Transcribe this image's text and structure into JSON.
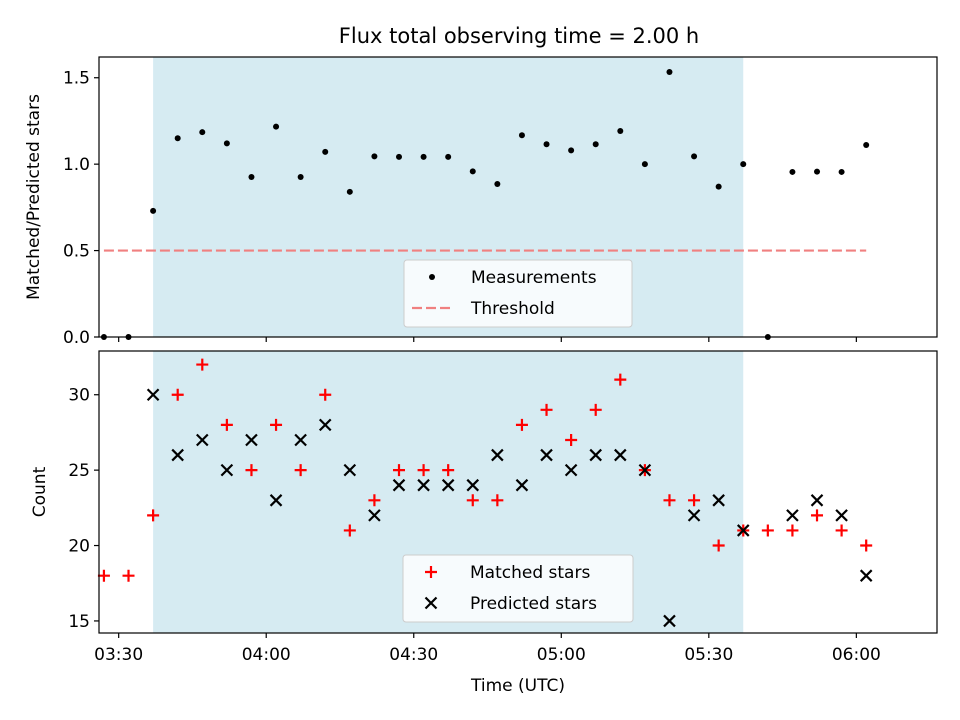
{
  "figure": {
    "title": "Flux total observing time = 2.00 h"
  },
  "chart_data": [
    {
      "type": "scatter",
      "ylabel": "Matched/Predicted stars",
      "ylim": [
        0.0,
        1.62
      ],
      "xlim_minutes": [
        3.4333,
        6.2733
      ],
      "yticks": [
        0.0,
        0.5,
        1.0,
        1.5
      ],
      "ytick_labels": [
        "0.0",
        "0.5",
        "1.0",
        "1.5"
      ],
      "shaded_span": [
        "03:37",
        "05:37"
      ],
      "shade_color": "#add8e6",
      "series": [
        {
          "name": "Measurements",
          "marker": "dot",
          "color": "#000000",
          "x": [
            "03:27",
            "03:32",
            "03:37",
            "03:42",
            "03:47",
            "03:52",
            "03:57",
            "04:02",
            "04:07",
            "04:12",
            "04:17",
            "04:22",
            "04:27",
            "04:32",
            "04:37",
            "04:42",
            "04:47",
            "04:52",
            "04:57",
            "05:02",
            "05:07",
            "05:12",
            "05:17",
            "05:22",
            "05:27",
            "05:32",
            "05:37",
            "05:42",
            "05:47",
            "05:52",
            "05:57",
            "06:02"
          ],
          "y": [
            0.0,
            0.0,
            0.73,
            1.15,
            1.185,
            1.12,
            0.926,
            1.217,
            0.926,
            1.071,
            0.84,
            1.045,
            1.042,
            1.042,
            1.042,
            0.958,
            0.885,
            1.167,
            1.115,
            1.08,
            1.115,
            1.192,
            1.0,
            1.533,
            1.045,
            0.87,
            1.0,
            0.0,
            0.955,
            0.957,
            0.955,
            1.111
          ]
        }
      ],
      "lines": [
        {
          "name": "Threshold",
          "style": "dashed",
          "color": "#f08080",
          "value": 0.5,
          "x_from": "03:27",
          "x_to": "06:02"
        }
      ],
      "legend": {
        "placement": "lower-center",
        "entries": [
          "Measurements",
          "Threshold"
        ]
      }
    },
    {
      "type": "scatter",
      "xlabel": "Time (UTC)",
      "ylabel": "Count",
      "ylim": [
        14.2,
        32.9
      ],
      "xlim_minutes": [
        3.4333,
        6.2733
      ],
      "yticks": [
        15,
        20,
        25,
        30
      ],
      "ytick_labels": [
        "15",
        "20",
        "25",
        "30"
      ],
      "xticks": [
        "03:30",
        "04:00",
        "04:30",
        "05:00",
        "05:30",
        "06:00"
      ],
      "shaded_span": [
        "03:37",
        "05:37"
      ],
      "shade_color": "#add8e6",
      "series": [
        {
          "name": "Matched stars",
          "marker": "plus",
          "color": "#ff0000",
          "x": [
            "03:27",
            "03:32",
            "03:37",
            "03:42",
            "03:47",
            "03:52",
            "03:57",
            "04:02",
            "04:07",
            "04:12",
            "04:17",
            "04:22",
            "04:27",
            "04:32",
            "04:37",
            "04:42",
            "04:47",
            "04:52",
            "04:57",
            "05:02",
            "05:07",
            "05:12",
            "05:17",
            "05:22",
            "05:27",
            "05:32",
            "05:37",
            "05:42",
            "05:47",
            "05:52",
            "05:57",
            "06:02"
          ],
          "y": [
            18,
            18,
            22,
            30,
            32,
            28,
            25,
            28,
            25,
            30,
            21,
            23,
            25,
            25,
            25,
            23,
            23,
            28,
            29,
            27,
            29,
            31,
            25,
            23,
            23,
            20,
            21,
            21,
            21,
            22,
            21,
            20
          ]
        },
        {
          "name": "Predicted stars",
          "marker": "x",
          "color": "#000000",
          "x": [
            "03:37",
            "03:42",
            "03:47",
            "03:52",
            "03:57",
            "04:02",
            "04:07",
            "04:12",
            "04:17",
            "04:22",
            "04:27",
            "04:32",
            "04:37",
            "04:42",
            "04:47",
            "04:52",
            "04:57",
            "05:02",
            "05:07",
            "05:12",
            "05:17",
            "05:22",
            "05:27",
            "05:32",
            "05:37",
            "05:47",
            "05:52",
            "05:57",
            "06:02"
          ],
          "y": [
            30,
            26,
            27,
            25,
            27,
            23,
            27,
            28,
            25,
            22,
            24,
            24,
            24,
            24,
            26,
            24,
            26,
            25,
            26,
            26,
            25,
            15,
            22,
            23,
            21,
            22,
            23,
            22,
            18
          ]
        }
      ],
      "legend": {
        "placement": "lower-center",
        "entries": [
          "Matched stars",
          "Predicted stars"
        ]
      }
    }
  ]
}
